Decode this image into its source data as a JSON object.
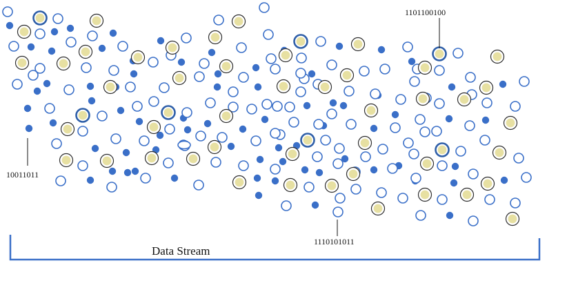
{
  "labels": {
    "left_code": "10011011",
    "top_code": "1101100100",
    "bottom_code": "1110101011",
    "stream_label": "Data Stream"
  },
  "colors": {
    "blue": "#3a6fc8",
    "gold_fill": "#e7e0a2",
    "gold_ring": "#2d2d2d",
    "highlight_ring": "#2f5fa8"
  }
}
